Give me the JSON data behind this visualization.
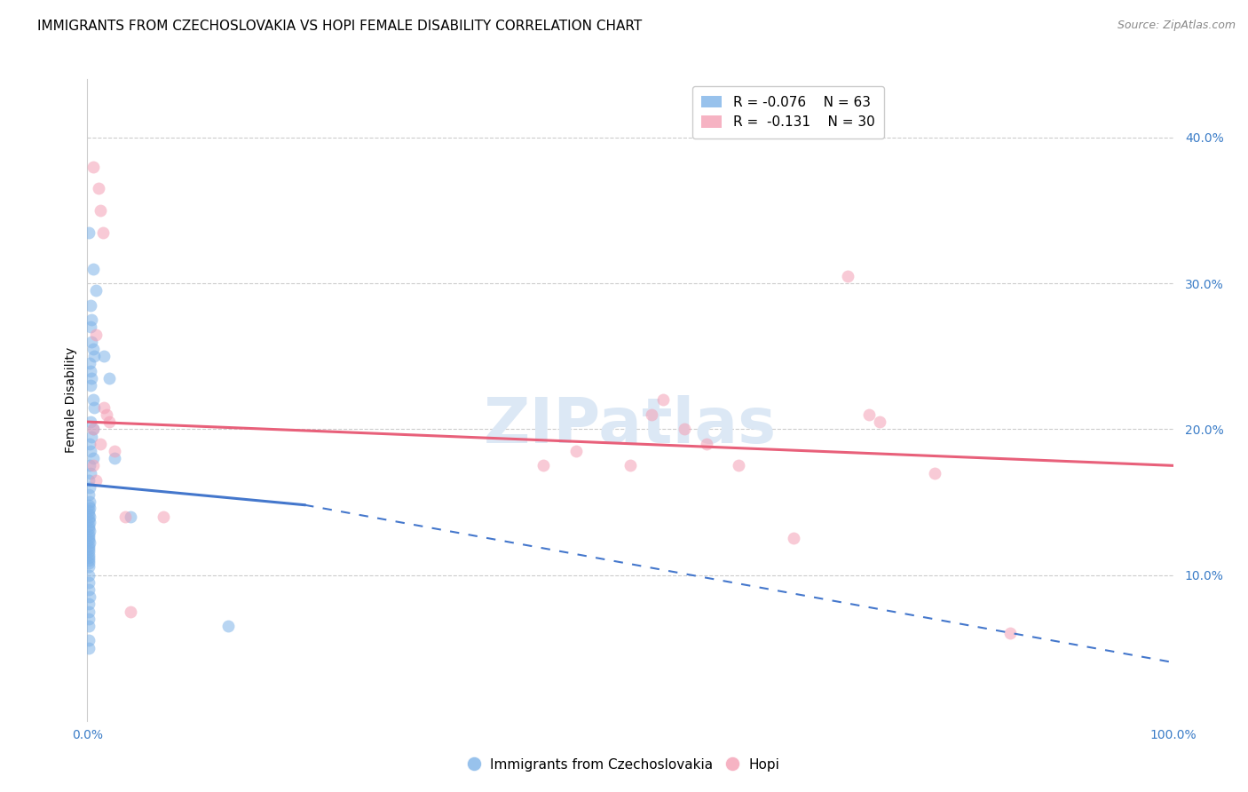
{
  "title": "IMMIGRANTS FROM CZECHOSLOVAKIA VS HOPI FEMALE DISABILITY CORRELATION CHART",
  "source": "Source: ZipAtlas.com",
  "ylabel": "Female Disability",
  "watermark": "ZIPatlas",
  "legend": {
    "blue_R": "-0.076",
    "blue_N": "63",
    "pink_R": "-0.131",
    "pink_N": "30"
  },
  "ytick_labels": [
    "10.0%",
    "20.0%",
    "30.0%",
    "40.0%"
  ],
  "ytick_values": [
    0.1,
    0.2,
    0.3,
    0.4
  ],
  "xlim": [
    0.0,
    1.0
  ],
  "ylim": [
    0.0,
    0.44
  ],
  "blue_scatter": [
    [
      0.001,
      0.335
    ],
    [
      0.005,
      0.31
    ],
    [
      0.008,
      0.295
    ],
    [
      0.003,
      0.285
    ],
    [
      0.004,
      0.275
    ],
    [
      0.003,
      0.27
    ],
    [
      0.004,
      0.26
    ],
    [
      0.005,
      0.255
    ],
    [
      0.006,
      0.25
    ],
    [
      0.002,
      0.245
    ],
    [
      0.003,
      0.24
    ],
    [
      0.004,
      0.235
    ],
    [
      0.003,
      0.23
    ],
    [
      0.005,
      0.22
    ],
    [
      0.006,
      0.215
    ],
    [
      0.003,
      0.205
    ],
    [
      0.005,
      0.2
    ],
    [
      0.004,
      0.195
    ],
    [
      0.002,
      0.19
    ],
    [
      0.003,
      0.185
    ],
    [
      0.005,
      0.18
    ],
    [
      0.002,
      0.175
    ],
    [
      0.003,
      0.17
    ],
    [
      0.001,
      0.165
    ],
    [
      0.002,
      0.16
    ],
    [
      0.001,
      0.155
    ],
    [
      0.002,
      0.15
    ],
    [
      0.001,
      0.148
    ],
    [
      0.002,
      0.146
    ],
    [
      0.001,
      0.144
    ],
    [
      0.001,
      0.142
    ],
    [
      0.002,
      0.14
    ],
    [
      0.001,
      0.138
    ],
    [
      0.002,
      0.136
    ],
    [
      0.001,
      0.134
    ],
    [
      0.001,
      0.132
    ],
    [
      0.002,
      0.13
    ],
    [
      0.001,
      0.128
    ],
    [
      0.001,
      0.126
    ],
    [
      0.001,
      0.124
    ],
    [
      0.002,
      0.122
    ],
    [
      0.001,
      0.12
    ],
    [
      0.001,
      0.118
    ],
    [
      0.001,
      0.116
    ],
    [
      0.001,
      0.114
    ],
    [
      0.001,
      0.112
    ],
    [
      0.001,
      0.11
    ],
    [
      0.001,
      0.108
    ],
    [
      0.001,
      0.106
    ],
    [
      0.001,
      0.1
    ],
    [
      0.001,
      0.095
    ],
    [
      0.001,
      0.09
    ],
    [
      0.002,
      0.085
    ],
    [
      0.001,
      0.08
    ],
    [
      0.001,
      0.075
    ],
    [
      0.001,
      0.07
    ],
    [
      0.001,
      0.065
    ],
    [
      0.001,
      0.055
    ],
    [
      0.001,
      0.05
    ],
    [
      0.015,
      0.25
    ],
    [
      0.02,
      0.235
    ],
    [
      0.025,
      0.18
    ],
    [
      0.04,
      0.14
    ],
    [
      0.13,
      0.065
    ]
  ],
  "pink_scatter": [
    [
      0.005,
      0.38
    ],
    [
      0.01,
      0.365
    ],
    [
      0.012,
      0.35
    ],
    [
      0.014,
      0.335
    ],
    [
      0.008,
      0.265
    ],
    [
      0.015,
      0.215
    ],
    [
      0.018,
      0.21
    ],
    [
      0.02,
      0.205
    ],
    [
      0.005,
      0.2
    ],
    [
      0.012,
      0.19
    ],
    [
      0.025,
      0.185
    ],
    [
      0.005,
      0.175
    ],
    [
      0.008,
      0.165
    ],
    [
      0.035,
      0.14
    ],
    [
      0.07,
      0.14
    ],
    [
      0.04,
      0.075
    ],
    [
      0.42,
      0.175
    ],
    [
      0.45,
      0.185
    ],
    [
      0.5,
      0.175
    ],
    [
      0.52,
      0.21
    ],
    [
      0.53,
      0.22
    ],
    [
      0.55,
      0.2
    ],
    [
      0.57,
      0.19
    ],
    [
      0.6,
      0.175
    ],
    [
      0.65,
      0.125
    ],
    [
      0.7,
      0.305
    ],
    [
      0.72,
      0.21
    ],
    [
      0.73,
      0.205
    ],
    [
      0.78,
      0.17
    ],
    [
      0.85,
      0.06
    ]
  ],
  "blue_solid_line": {
    "x0": 0.0,
    "y0": 0.162,
    "x1": 0.2,
    "y1": 0.148
  },
  "blue_dashed_line": {
    "x0": 0.2,
    "y0": 0.148,
    "x1": 1.0,
    "y1": 0.04
  },
  "pink_line": {
    "x0": 0.0,
    "y0": 0.205,
    "x1": 1.0,
    "y1": 0.175
  },
  "background_color": "#ffffff",
  "grid_color": "#cccccc",
  "blue_color": "#7fb3e8",
  "pink_color": "#f4a0b5",
  "blue_line_color": "#4477cc",
  "pink_line_color": "#e8607a",
  "title_fontsize": 11,
  "axis_label_fontsize": 10,
  "tick_fontsize": 10,
  "legend_fontsize": 11,
  "scatter_size": 100,
  "scatter_alpha": 0.55,
  "watermark_fontsize": 52,
  "watermark_color": "#dce8f5",
  "source_fontsize": 9
}
